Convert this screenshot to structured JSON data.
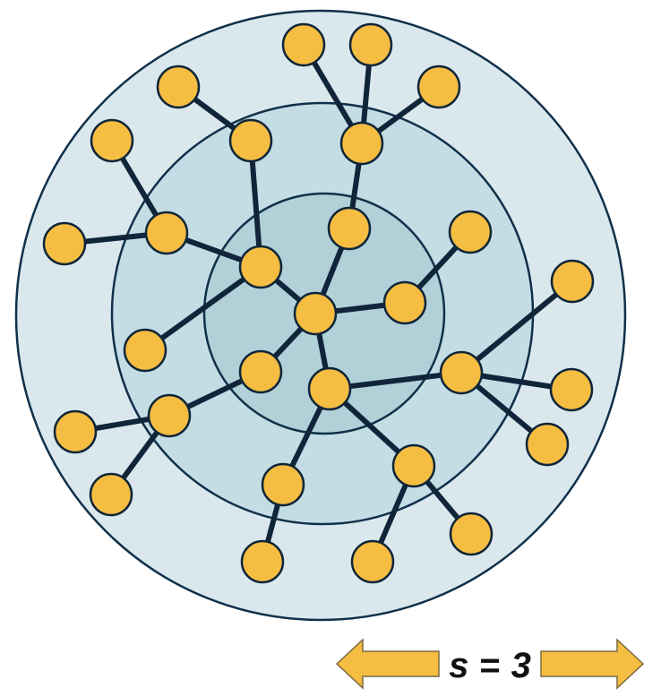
{
  "colors": {
    "outer_ring": "#dae8ed",
    "middle_ring": "#c4dde4",
    "inner_ring": "#b1d0d8",
    "node_fill": "#f5be42",
    "edge": "#10253a"
  },
  "label": {
    "variable": "s",
    "equals": "=",
    "value": "3"
  }
}
